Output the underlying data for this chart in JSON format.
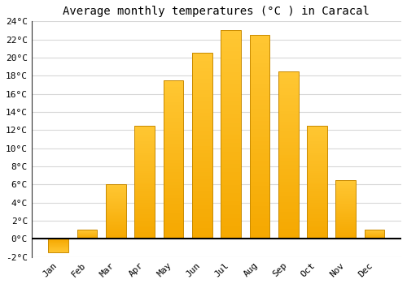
{
  "title": "Average monthly temperatures (°C ) in Caracal",
  "months": [
    "Jan",
    "Feb",
    "Mar",
    "Apr",
    "May",
    "Jun",
    "Jul",
    "Aug",
    "Sep",
    "Oct",
    "Nov",
    "Dec"
  ],
  "values": [
    -1.5,
    1.0,
    6.0,
    12.5,
    17.5,
    20.5,
    23.0,
    22.5,
    18.5,
    12.5,
    6.5,
    1.0
  ],
  "bar_color_top": "#FFC733",
  "bar_color_bottom": "#F5A800",
  "bar_edge_color": "#C88A00",
  "ylim": [
    -2,
    24
  ],
  "yticks": [
    -2,
    0,
    2,
    4,
    6,
    8,
    10,
    12,
    14,
    16,
    18,
    20,
    22,
    24
  ],
  "background_color": "#ffffff",
  "grid_color": "#d8d8d8",
  "title_fontsize": 10,
  "tick_fontsize": 8,
  "left_spine_color": "#333333",
  "zero_line_color": "#000000"
}
